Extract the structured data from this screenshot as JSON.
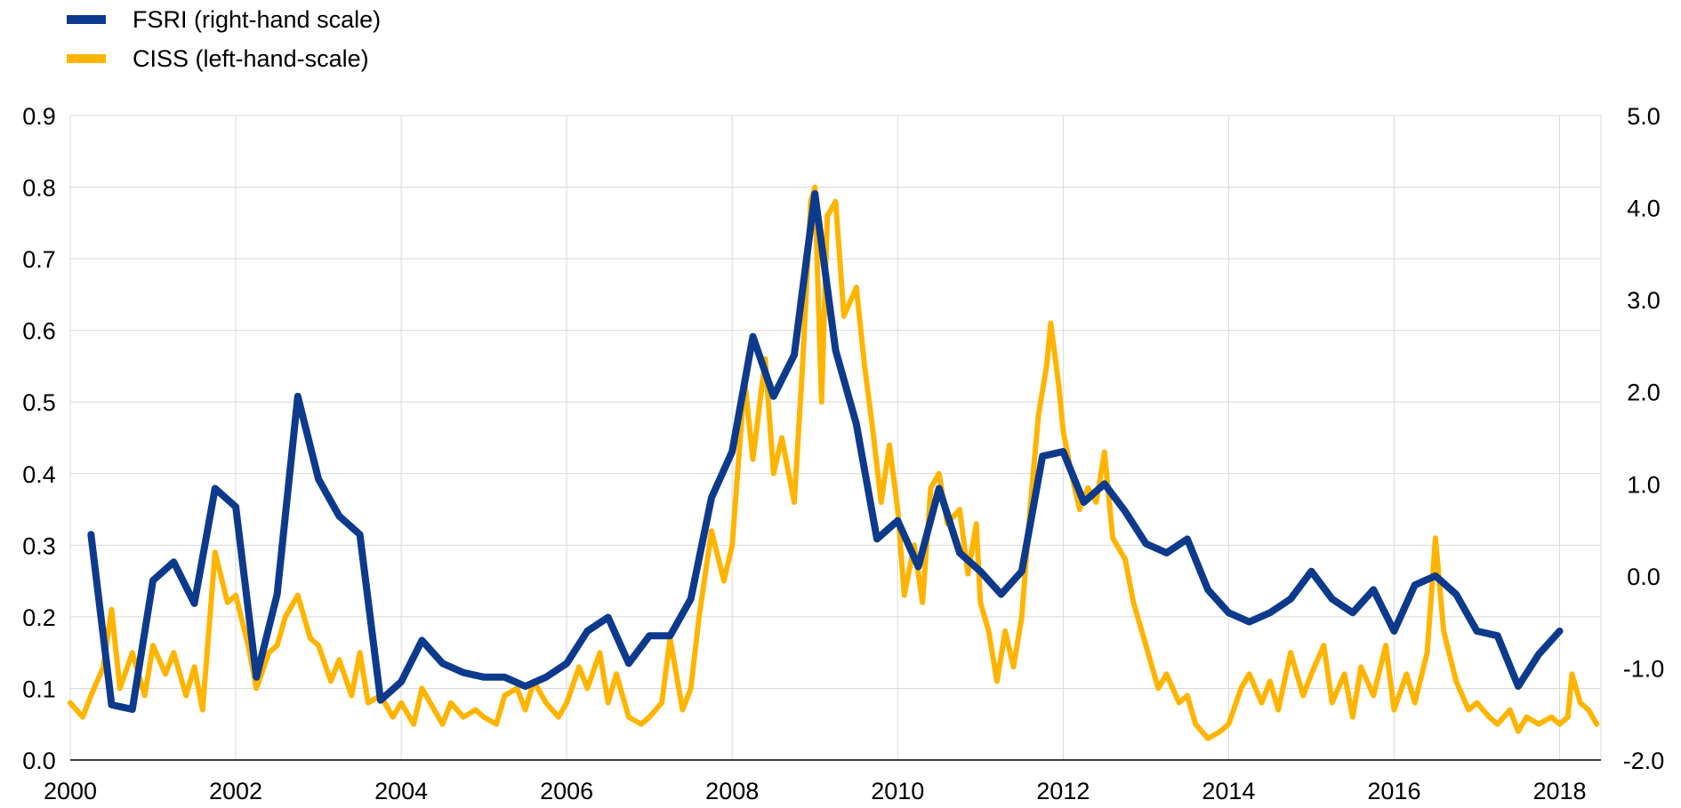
{
  "chart_data": {
    "type": "line",
    "title": "",
    "xlabel": "",
    "ylabel": "",
    "legend_position": "top-left",
    "grid": true,
    "x_range": [
      2000.0,
      2018.5
    ],
    "x_ticks": [
      "2000",
      "2002",
      "2004",
      "2006",
      "2008",
      "2010",
      "2012",
      "2014",
      "2016",
      "2018"
    ],
    "y_left": {
      "range": [
        0.0,
        0.9
      ],
      "ticks": [
        "0.0",
        "0.1",
        "0.2",
        "0.3",
        "0.4",
        "0.5",
        "0.6",
        "0.7",
        "0.8",
        "0.9"
      ]
    },
    "y_right": {
      "range": [
        -2.0,
        5.0
      ],
      "ticks": [
        "-2.0",
        "-1.0",
        "0.0",
        "1.0",
        "2.0",
        "3.0",
        "4.0",
        "5.0"
      ]
    },
    "series": [
      {
        "name": "FSRI (right-hand scale)",
        "color": "#0d3a8c",
        "axis": "right",
        "points": [
          [
            2000.25,
            0.45
          ],
          [
            2000.5,
            -1.4
          ],
          [
            2000.75,
            -1.45
          ],
          [
            2001.0,
            -0.05
          ],
          [
            2001.25,
            0.15
          ],
          [
            2001.5,
            -0.3
          ],
          [
            2001.75,
            0.95
          ],
          [
            2002.0,
            0.75
          ],
          [
            2002.25,
            -1.1
          ],
          [
            2002.5,
            -0.2
          ],
          [
            2002.75,
            1.95
          ],
          [
            2003.0,
            1.05
          ],
          [
            2003.25,
            0.65
          ],
          [
            2003.5,
            0.45
          ],
          [
            2003.75,
            -1.35
          ],
          [
            2004.0,
            -1.15
          ],
          [
            2004.25,
            -0.7
          ],
          [
            2004.5,
            -0.95
          ],
          [
            2004.75,
            -1.05
          ],
          [
            2005.0,
            -1.1
          ],
          [
            2005.25,
            -1.1
          ],
          [
            2005.5,
            -1.2
          ],
          [
            2005.75,
            -1.1
          ],
          [
            2006.0,
            -0.95
          ],
          [
            2006.25,
            -0.6
          ],
          [
            2006.5,
            -0.45
          ],
          [
            2006.75,
            -0.95
          ],
          [
            2007.0,
            -0.65
          ],
          [
            2007.25,
            -0.65
          ],
          [
            2007.5,
            -0.25
          ],
          [
            2007.75,
            0.85
          ],
          [
            2008.0,
            1.35
          ],
          [
            2008.25,
            2.6
          ],
          [
            2008.5,
            1.95
          ],
          [
            2008.75,
            2.4
          ],
          [
            2009.0,
            4.15
          ],
          [
            2009.25,
            2.45
          ],
          [
            2009.5,
            1.65
          ],
          [
            2009.75,
            0.4
          ],
          [
            2010.0,
            0.6
          ],
          [
            2010.25,
            0.1
          ],
          [
            2010.5,
            0.95
          ],
          [
            2010.75,
            0.25
          ],
          [
            2011.0,
            0.05
          ],
          [
            2011.25,
            -0.2
          ],
          [
            2011.5,
            0.05
          ],
          [
            2011.75,
            1.3
          ],
          [
            2012.0,
            1.35
          ],
          [
            2012.25,
            0.8
          ],
          [
            2012.5,
            1.0
          ],
          [
            2012.75,
            0.7
          ],
          [
            2013.0,
            0.35
          ],
          [
            2013.25,
            0.25
          ],
          [
            2013.5,
            0.4
          ],
          [
            2013.75,
            -0.15
          ],
          [
            2014.0,
            -0.4
          ],
          [
            2014.25,
            -0.5
          ],
          [
            2014.5,
            -0.4
          ],
          [
            2014.75,
            -0.25
          ],
          [
            2015.0,
            0.05
          ],
          [
            2015.25,
            -0.25
          ],
          [
            2015.5,
            -0.4
          ],
          [
            2015.75,
            -0.15
          ],
          [
            2016.0,
            -0.6
          ],
          [
            2016.25,
            -0.1
          ],
          [
            2016.5,
            0.0
          ],
          [
            2016.75,
            -0.2
          ],
          [
            2017.0,
            -0.6
          ],
          [
            2017.25,
            -0.65
          ],
          [
            2017.5,
            -1.2
          ],
          [
            2017.75,
            -0.85
          ],
          [
            2018.0,
            -0.6
          ]
        ]
      },
      {
        "name": "CISS (left-hand-scale)",
        "color": "#ffb400",
        "axis": "left",
        "points": [
          [
            2000.0,
            0.08
          ],
          [
            2000.15,
            0.06
          ],
          [
            2000.25,
            0.09
          ],
          [
            2000.4,
            0.13
          ],
          [
            2000.5,
            0.21
          ],
          [
            2000.6,
            0.1
          ],
          [
            2000.75,
            0.15
          ],
          [
            2000.9,
            0.09
          ],
          [
            2001.0,
            0.16
          ],
          [
            2001.15,
            0.12
          ],
          [
            2001.25,
            0.15
          ],
          [
            2001.4,
            0.09
          ],
          [
            2001.5,
            0.13
          ],
          [
            2001.6,
            0.07
          ],
          [
            2001.75,
            0.29
          ],
          [
            2001.9,
            0.22
          ],
          [
            2002.0,
            0.23
          ],
          [
            2002.15,
            0.16
          ],
          [
            2002.25,
            0.1
          ],
          [
            2002.4,
            0.15
          ],
          [
            2002.5,
            0.16
          ],
          [
            2002.6,
            0.2
          ],
          [
            2002.75,
            0.23
          ],
          [
            2002.9,
            0.17
          ],
          [
            2003.0,
            0.16
          ],
          [
            2003.15,
            0.11
          ],
          [
            2003.25,
            0.14
          ],
          [
            2003.4,
            0.09
          ],
          [
            2003.5,
            0.15
          ],
          [
            2003.6,
            0.08
          ],
          [
            2003.75,
            0.09
          ],
          [
            2003.9,
            0.06
          ],
          [
            2004.0,
            0.08
          ],
          [
            2004.15,
            0.05
          ],
          [
            2004.25,
            0.1
          ],
          [
            2004.4,
            0.07
          ],
          [
            2004.5,
            0.05
          ],
          [
            2004.6,
            0.08
          ],
          [
            2004.75,
            0.06
          ],
          [
            2004.9,
            0.07
          ],
          [
            2005.0,
            0.06
          ],
          [
            2005.15,
            0.05
          ],
          [
            2005.25,
            0.09
          ],
          [
            2005.4,
            0.1
          ],
          [
            2005.5,
            0.07
          ],
          [
            2005.6,
            0.11
          ],
          [
            2005.75,
            0.08
          ],
          [
            2005.9,
            0.06
          ],
          [
            2006.0,
            0.08
          ],
          [
            2006.15,
            0.13
          ],
          [
            2006.25,
            0.1
          ],
          [
            2006.4,
            0.15
          ],
          [
            2006.5,
            0.08
          ],
          [
            2006.6,
            0.12
          ],
          [
            2006.75,
            0.06
          ],
          [
            2006.9,
            0.05
          ],
          [
            2007.0,
            0.06
          ],
          [
            2007.15,
            0.08
          ],
          [
            2007.25,
            0.17
          ],
          [
            2007.4,
            0.07
          ],
          [
            2007.5,
            0.1
          ],
          [
            2007.6,
            0.2
          ],
          [
            2007.75,
            0.32
          ],
          [
            2007.9,
            0.25
          ],
          [
            2008.0,
            0.3
          ],
          [
            2008.15,
            0.53
          ],
          [
            2008.25,
            0.42
          ],
          [
            2008.4,
            0.56
          ],
          [
            2008.5,
            0.4
          ],
          [
            2008.6,
            0.45
          ],
          [
            2008.75,
            0.36
          ],
          [
            2008.85,
            0.55
          ],
          [
            2008.95,
            0.78
          ],
          [
            2009.0,
            0.8
          ],
          [
            2009.08,
            0.5
          ],
          [
            2009.15,
            0.76
          ],
          [
            2009.25,
            0.78
          ],
          [
            2009.35,
            0.62
          ],
          [
            2009.5,
            0.66
          ],
          [
            2009.6,
            0.55
          ],
          [
            2009.7,
            0.46
          ],
          [
            2009.8,
            0.36
          ],
          [
            2009.9,
            0.44
          ],
          [
            2010.0,
            0.35
          ],
          [
            2010.08,
            0.23
          ],
          [
            2010.2,
            0.3
          ],
          [
            2010.3,
            0.22
          ],
          [
            2010.4,
            0.38
          ],
          [
            2010.5,
            0.4
          ],
          [
            2010.6,
            0.33
          ],
          [
            2010.75,
            0.35
          ],
          [
            2010.85,
            0.26
          ],
          [
            2010.95,
            0.33
          ],
          [
            2011.0,
            0.22
          ],
          [
            2011.1,
            0.18
          ],
          [
            2011.2,
            0.11
          ],
          [
            2011.3,
            0.18
          ],
          [
            2011.4,
            0.13
          ],
          [
            2011.5,
            0.2
          ],
          [
            2011.6,
            0.35
          ],
          [
            2011.7,
            0.48
          ],
          [
            2011.8,
            0.55
          ],
          [
            2011.85,
            0.61
          ],
          [
            2011.95,
            0.52
          ],
          [
            2012.0,
            0.46
          ],
          [
            2012.1,
            0.4
          ],
          [
            2012.2,
            0.35
          ],
          [
            2012.3,
            0.38
          ],
          [
            2012.4,
            0.36
          ],
          [
            2012.5,
            0.43
          ],
          [
            2012.6,
            0.31
          ],
          [
            2012.75,
            0.28
          ],
          [
            2012.85,
            0.22
          ],
          [
            2013.0,
            0.16
          ],
          [
            2013.15,
            0.1
          ],
          [
            2013.25,
            0.12
          ],
          [
            2013.4,
            0.08
          ],
          [
            2013.5,
            0.09
          ],
          [
            2013.6,
            0.05
          ],
          [
            2013.75,
            0.03
          ],
          [
            2013.9,
            0.04
          ],
          [
            2014.0,
            0.05
          ],
          [
            2014.15,
            0.1
          ],
          [
            2014.25,
            0.12
          ],
          [
            2014.4,
            0.08
          ],
          [
            2014.5,
            0.11
          ],
          [
            2014.6,
            0.07
          ],
          [
            2014.75,
            0.15
          ],
          [
            2014.9,
            0.09
          ],
          [
            2015.0,
            0.12
          ],
          [
            2015.15,
            0.16
          ],
          [
            2015.25,
            0.08
          ],
          [
            2015.4,
            0.12
          ],
          [
            2015.5,
            0.06
          ],
          [
            2015.6,
            0.13
          ],
          [
            2015.75,
            0.09
          ],
          [
            2015.9,
            0.16
          ],
          [
            2016.0,
            0.07
          ],
          [
            2016.15,
            0.12
          ],
          [
            2016.25,
            0.08
          ],
          [
            2016.4,
            0.15
          ],
          [
            2016.5,
            0.31
          ],
          [
            2016.6,
            0.18
          ],
          [
            2016.75,
            0.11
          ],
          [
            2016.9,
            0.07
          ],
          [
            2017.0,
            0.08
          ],
          [
            2017.15,
            0.06
          ],
          [
            2017.25,
            0.05
          ],
          [
            2017.4,
            0.07
          ],
          [
            2017.5,
            0.04
          ],
          [
            2017.6,
            0.06
          ],
          [
            2017.75,
            0.05
          ],
          [
            2017.9,
            0.06
          ],
          [
            2018.0,
            0.05
          ],
          [
            2018.1,
            0.06
          ],
          [
            2018.15,
            0.12
          ],
          [
            2018.25,
            0.08
          ],
          [
            2018.35,
            0.07
          ],
          [
            2018.45,
            0.05
          ]
        ]
      }
    ]
  }
}
